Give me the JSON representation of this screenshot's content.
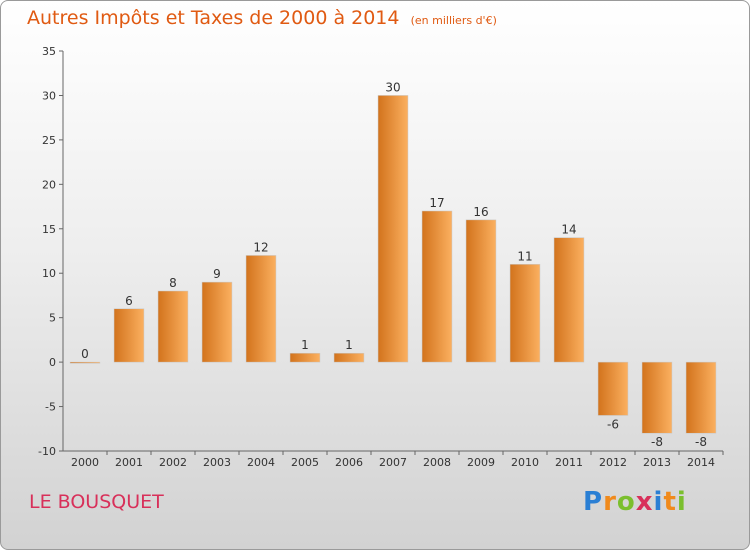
{
  "header": {
    "title": "Autres Impôts et Taxes de 2000 à 2014",
    "unit": "(en milliers d'€)"
  },
  "footer": {
    "city": "LE BOUSQUET",
    "logo_text": "Proxiti",
    "logo_colors": [
      "#2a7fd4",
      "#f08a1c",
      "#7bbf2e",
      "#d8305a",
      "#2a7fd4",
      "#f08a1c",
      "#7bbf2e"
    ]
  },
  "colors": {
    "bar_light": "#fbb060",
    "bar_dark": "#d2731c",
    "title": "#e05a12",
    "city": "#d8305a"
  },
  "chart_data": {
    "type": "bar",
    "title": "Autres Impôts et Taxes de 2000 à 2014",
    "subtitle": "(en milliers d'€)",
    "xlabel": "",
    "ylabel": "",
    "categories": [
      "2000",
      "2001",
      "2002",
      "2003",
      "2004",
      "2005",
      "2006",
      "2007",
      "2008",
      "2009",
      "2010",
      "2011",
      "2012",
      "2013",
      "2014"
    ],
    "values": [
      0,
      6,
      8,
      9,
      12,
      1,
      1,
      30,
      17,
      16,
      11,
      14,
      -6,
      -8,
      -8
    ],
    "data_labels": [
      "0",
      "6",
      "8",
      "9",
      "12",
      "1",
      "1",
      "30",
      "17",
      "16",
      "11",
      "14",
      "-6",
      "-8",
      "-8"
    ],
    "ylim": [
      -10,
      35
    ],
    "yticks": [
      35,
      30,
      25,
      20,
      15,
      10,
      5,
      0,
      -5,
      -10
    ],
    "ytick_labels": [
      "35",
      "30",
      "25",
      "20",
      "15",
      "10",
      "5",
      "0",
      "-5",
      "-10"
    ],
    "grid": false,
    "legend": "none"
  }
}
